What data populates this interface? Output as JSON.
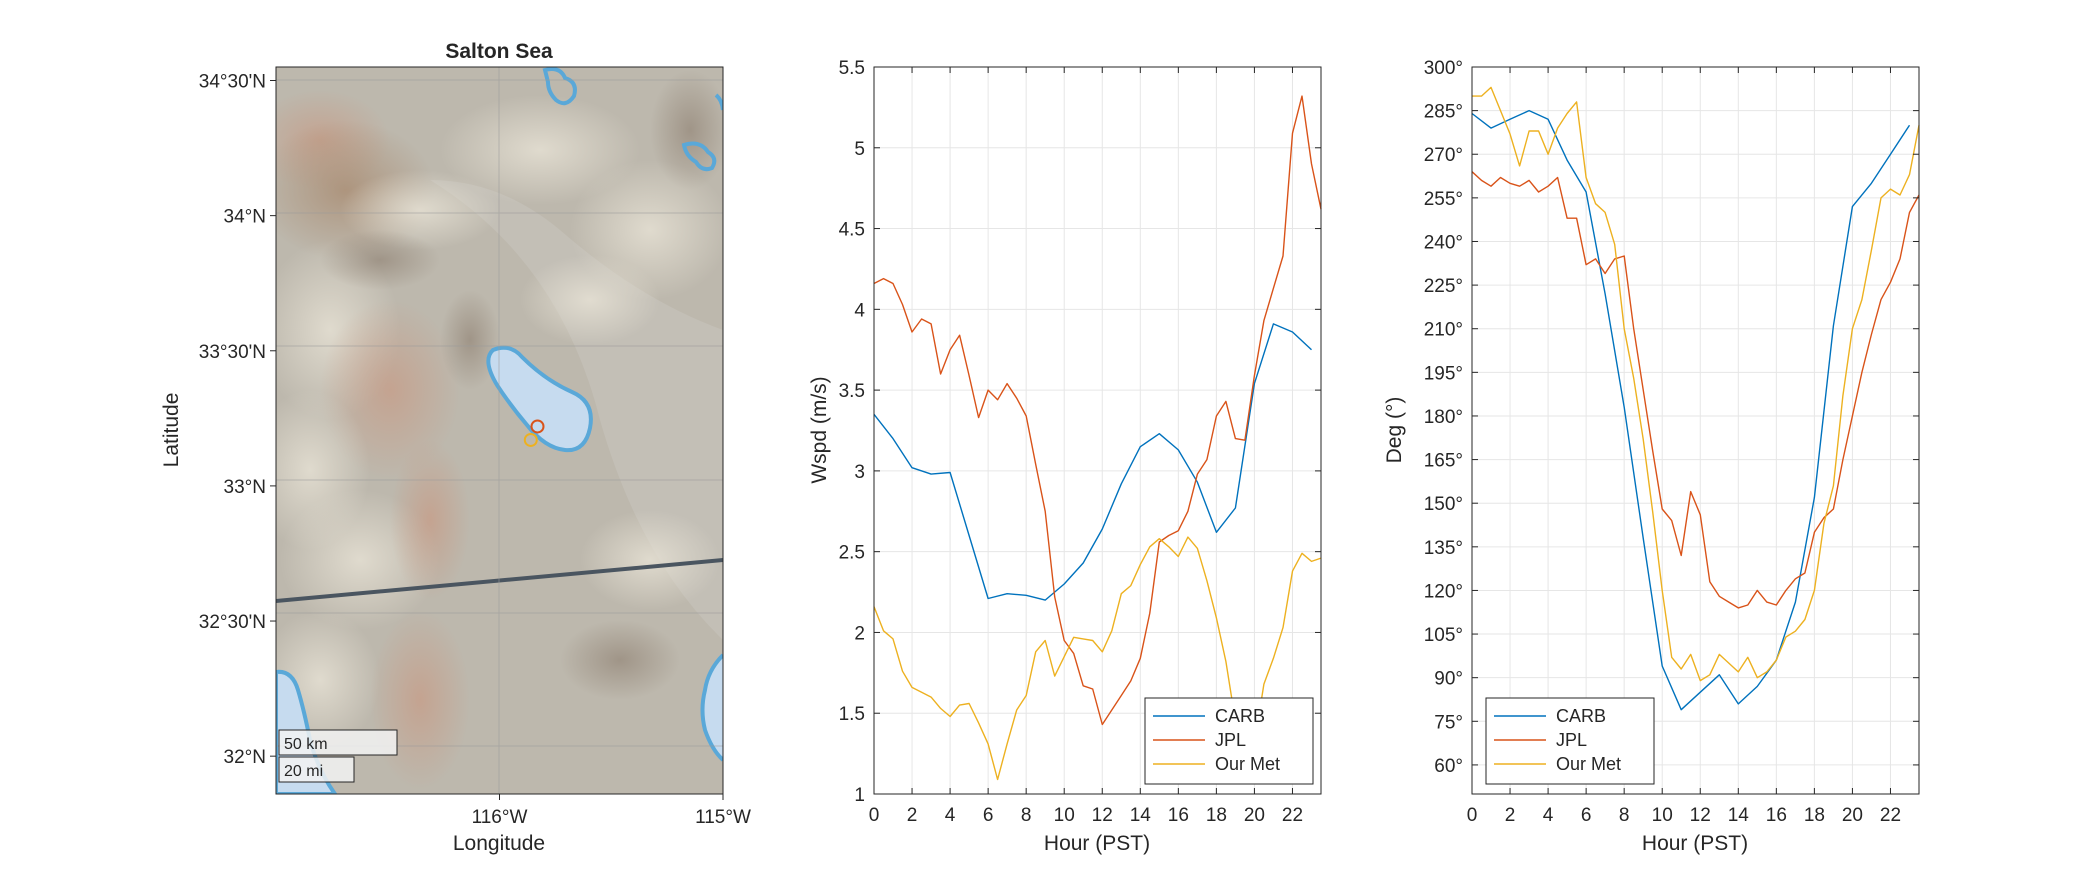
{
  "map": {
    "title": "Salton Sea",
    "xlabel": "Longitude",
    "ylabel": "Latitude",
    "lat_ticks": [
      "32°N",
      "32°30'N",
      "33°N",
      "33°30'N",
      "34°N",
      "34°30'N"
    ],
    "lat_tick_values": [
      32.0,
      32.5,
      33.0,
      33.5,
      34.0,
      34.5
    ],
    "lon_ticks": [
      "116°W",
      "115°W"
    ],
    "lon_tick_values": [
      -116.0,
      -115.0
    ],
    "lon_range": [
      -117.0,
      -115.0
    ],
    "lat_range": [
      31.86,
      34.55
    ],
    "scalebar_km": "50 km",
    "scalebar_mi": "20 mi",
    "markers": [
      {
        "name": "JPL",
        "lon": -115.83,
        "lat": 33.22,
        "color": "#d95319"
      },
      {
        "name": "Our Met",
        "lon": -115.86,
        "lat": 33.17,
        "color": "#edb120"
      }
    ],
    "colors": {
      "water": "#c6dbef",
      "shore": "#5aa8d8",
      "terrain": "#c8bfae",
      "border": "#4a5560"
    }
  },
  "chart_data": [
    {
      "type": "line",
      "xlabel": "Hour (PST)",
      "ylabel": "Wspd (m/s)",
      "xlim": [
        0,
        23.5
      ],
      "ylim": [
        1,
        5.5
      ],
      "xticks": [
        0,
        2,
        4,
        6,
        8,
        10,
        12,
        14,
        16,
        18,
        20,
        22
      ],
      "yticks": [
        1,
        1.5,
        2,
        2.5,
        3,
        3.5,
        4,
        4.5,
        5,
        5.5
      ],
      "ytick_labels": [
        "1",
        "1.5",
        "2",
        "2.5",
        "3",
        "3.5",
        "4",
        "4.5",
        "5",
        "5.5"
      ],
      "grid": true,
      "legend_location": "bottom-right",
      "series": [
        {
          "name": "CARB",
          "color": "#0072bd",
          "x": [
            0,
            1,
            2,
            3,
            4,
            5,
            6,
            7,
            8,
            9,
            10,
            11,
            12,
            13,
            14,
            15,
            16,
            17,
            18,
            19,
            20,
            21,
            22,
            23
          ],
          "y": [
            3.35,
            3.2,
            3.02,
            2.98,
            2.99,
            2.6,
            2.21,
            2.24,
            2.23,
            2.2,
            2.3,
            2.43,
            2.64,
            2.92,
            3.15,
            3.23,
            3.13,
            2.93,
            2.62,
            2.77,
            3.54,
            3.91,
            3.86,
            3.75
          ]
        },
        {
          "name": "JPL",
          "color": "#d95319",
          "x": [
            0,
            0.5,
            1,
            1.5,
            2,
            2.5,
            3,
            3.5,
            4,
            4.5,
            5,
            5.5,
            6,
            6.5,
            7,
            7.5,
            8,
            8.5,
            9,
            9.5,
            10,
            10.5,
            11,
            11.5,
            12,
            12.5,
            13,
            13.5,
            14,
            14.5,
            15,
            15.5,
            16,
            16.5,
            17,
            17.5,
            18,
            18.5,
            19,
            19.5,
            20,
            20.5,
            21,
            21.5,
            22,
            22.5,
            23,
            23.5
          ],
          "y": [
            4.16,
            4.19,
            4.16,
            4.03,
            3.86,
            3.94,
            3.91,
            3.6,
            3.75,
            3.84,
            3.59,
            3.33,
            3.5,
            3.44,
            3.54,
            3.45,
            3.34,
            3.04,
            2.75,
            2.22,
            1.95,
            1.87,
            1.67,
            1.65,
            1.43,
            1.52,
            1.61,
            1.7,
            1.84,
            2.12,
            2.56,
            2.6,
            2.63,
            2.75,
            2.98,
            3.07,
            3.34,
            3.43,
            3.2,
            3.19,
            3.59,
            3.93,
            4.13,
            4.33,
            5.09,
            5.32,
            4.9,
            4.62
          ]
        },
        {
          "name": "Our Met",
          "color": "#edb120",
          "x": [
            0,
            0.5,
            1,
            1.5,
            2,
            2.5,
            3,
            3.5,
            4,
            4.5,
            5,
            5.5,
            6,
            6.5,
            7,
            7.5,
            8,
            8.5,
            9,
            9.5,
            10,
            10.5,
            11,
            11.5,
            12,
            12.5,
            13,
            13.5,
            14,
            14.5,
            15,
            15.5,
            16,
            16.5,
            17,
            17.5,
            18,
            18.5,
            19,
            19.5,
            20,
            20.5,
            21,
            21.5,
            22,
            22.5,
            23,
            23.5
          ],
          "y": [
            2.16,
            2.01,
            1.96,
            1.76,
            1.66,
            1.63,
            1.6,
            1.53,
            1.48,
            1.55,
            1.56,
            1.44,
            1.31,
            1.09,
            1.31,
            1.52,
            1.61,
            1.88,
            1.95,
            1.73,
            1.85,
            1.97,
            1.96,
            1.95,
            1.88,
            2.01,
            2.24,
            2.29,
            2.42,
            2.53,
            2.58,
            2.53,
            2.47,
            2.59,
            2.52,
            2.32,
            2.09,
            1.82,
            1.45,
            1.31,
            1.31,
            1.68,
            1.84,
            2.03,
            2.38,
            2.49,
            2.44,
            2.46
          ]
        }
      ]
    },
    {
      "type": "line",
      "xlabel": "Hour (PST)",
      "ylabel": "Deg (°)",
      "xlim": [
        0,
        23.5
      ],
      "ylim": [
        50,
        300
      ],
      "xticks": [
        0,
        2,
        4,
        6,
        8,
        10,
        12,
        14,
        16,
        18,
        20,
        22
      ],
      "yticks": [
        60,
        75,
        90,
        105,
        120,
        135,
        150,
        165,
        180,
        195,
        210,
        225,
        240,
        255,
        270,
        285,
        300
      ],
      "ytick_labels": [
        "60°",
        "75°",
        "90°",
        "105°",
        "120°",
        "135°",
        "150°",
        "165°",
        "180°",
        "195°",
        "210°",
        "225°",
        "240°",
        "255°",
        "270°",
        "285°",
        "300°"
      ],
      "grid": true,
      "legend_location": "bottom-left",
      "series": [
        {
          "name": "CARB",
          "color": "#0072bd",
          "x": [
            0,
            1,
            2,
            3,
            4,
            5,
            6,
            7,
            8,
            9,
            10,
            11,
            12,
            13,
            14,
            15,
            16,
            17,
            18,
            19,
            20,
            21,
            22,
            23
          ],
          "y": [
            284,
            279,
            282,
            285,
            282,
            268,
            257,
            222,
            183,
            138,
            94,
            79,
            85,
            91,
            81,
            87,
            96,
            116,
            152,
            211,
            252,
            260,
            270,
            280
          ]
        },
        {
          "name": "JPL",
          "color": "#d95319",
          "x": [
            0,
            0.5,
            1,
            1.5,
            2,
            2.5,
            3,
            3.5,
            4,
            4.5,
            5,
            5.5,
            6,
            6.5,
            7,
            7.5,
            8,
            8.5,
            9,
            9.5,
            10,
            10.5,
            11,
            11.5,
            12,
            12.5,
            13,
            13.5,
            14,
            14.5,
            15,
            15.5,
            16,
            16.5,
            17,
            17.5,
            18,
            18.5,
            19,
            19.5,
            20,
            20.5,
            21,
            21.5,
            22,
            22.5,
            23,
            23.5
          ],
          "y": [
            264,
            261,
            259,
            262,
            260,
            259,
            261,
            257,
            259,
            262,
            248,
            248,
            232,
            234,
            229,
            234,
            235,
            210,
            189,
            168,
            148,
            144,
            132,
            154,
            146,
            123,
            118,
            116,
            114,
            115,
            120,
            116,
            115,
            120,
            124,
            126,
            140,
            145,
            148,
            165,
            180,
            195,
            208,
            220,
            226,
            234,
            250,
            256
          ]
        },
        {
          "name": "Our Met",
          "color": "#edb120",
          "x": [
            0,
            0.5,
            1,
            1.5,
            2,
            2.5,
            3,
            3.5,
            4,
            4.5,
            5,
            5.5,
            6,
            6.5,
            7,
            7.5,
            8,
            8.5,
            9,
            9.5,
            10,
            10.5,
            11,
            11.5,
            12,
            12.5,
            13,
            13.5,
            14,
            14.5,
            15,
            15.5,
            16,
            16.5,
            17,
            17.5,
            18,
            18.5,
            19,
            19.5,
            20,
            20.5,
            21,
            21.5,
            22,
            22.5,
            23,
            23.5
          ],
          "y": [
            290,
            290,
            293,
            285,
            277,
            266,
            278,
            278,
            270,
            279,
            284,
            288,
            262,
            253,
            250,
            239,
            210,
            193,
            172,
            147,
            120,
            97,
            93,
            98,
            89,
            91,
            98,
            95,
            92,
            97,
            90,
            92,
            96,
            104,
            106,
            110,
            120,
            143,
            156,
            187,
            210,
            220,
            237,
            255,
            258,
            256,
            263,
            280
          ]
        }
      ]
    }
  ]
}
